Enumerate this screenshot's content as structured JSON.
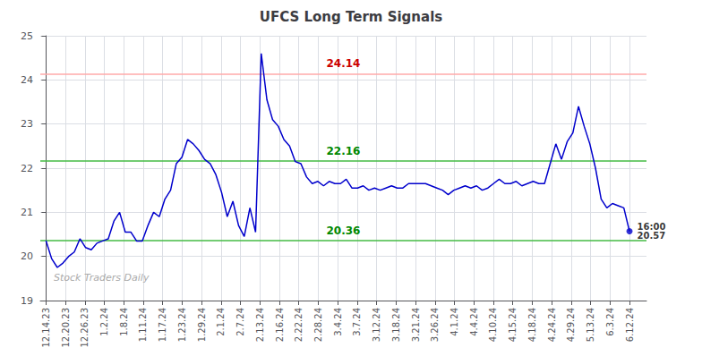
{
  "chart_data": {
    "type": "line",
    "title": "UFCS Long Term Signals",
    "color": "#0000cc",
    "x": [
      0,
      1,
      2,
      3,
      4,
      5,
      6,
      7,
      8,
      9,
      10,
      11,
      12,
      13,
      14,
      15,
      16,
      17,
      18,
      19,
      20,
      21,
      22,
      23,
      24,
      25,
      26,
      27,
      28,
      29,
      30,
      31,
      32,
      33,
      34,
      35,
      36,
      37,
      38,
      39,
      40,
      41,
      42,
      43,
      44,
      45,
      46,
      47,
      48,
      49,
      50,
      51,
      52,
      53,
      54,
      55,
      56,
      57,
      58,
      59,
      60,
      61,
      62,
      63,
      64,
      65,
      66,
      67,
      68,
      69,
      70,
      71,
      72,
      73,
      74,
      75,
      76,
      77,
      78,
      79,
      80,
      81,
      82,
      83,
      84,
      85,
      86,
      87,
      88,
      89,
      90,
      91,
      92,
      93,
      94,
      95,
      96,
      97,
      98,
      99,
      100,
      101,
      102,
      103
    ],
    "values": [
      20.36,
      19.95,
      19.75,
      19.85,
      20.0,
      20.1,
      20.4,
      20.2,
      20.15,
      20.3,
      20.35,
      20.4,
      20.8,
      21.0,
      20.55,
      20.55,
      20.35,
      20.35,
      20.7,
      21.0,
      20.9,
      21.3,
      21.5,
      22.1,
      22.25,
      22.65,
      22.55,
      22.4,
      22.2,
      22.1,
      21.85,
      21.45,
      20.9,
      21.25,
      20.7,
      20.45,
      21.1,
      20.55,
      24.6,
      23.55,
      23.1,
      22.95,
      22.65,
      22.5,
      22.15,
      22.1,
      21.8,
      21.65,
      21.7,
      21.6,
      21.7,
      21.65,
      21.65,
      21.75,
      21.55,
      21.55,
      21.6,
      21.5,
      21.55,
      21.5,
      21.55,
      21.6,
      21.55,
      21.55,
      21.65,
      21.65,
      21.65,
      21.65,
      21.6,
      21.55,
      21.5,
      21.4,
      21.5,
      21.55,
      21.6,
      21.55,
      21.6,
      21.5,
      21.55,
      21.65,
      21.75,
      21.65,
      21.65,
      21.7,
      21.6,
      21.65,
      21.7,
      21.65,
      21.65,
      22.1,
      22.55,
      22.2,
      22.6,
      22.8,
      23.4,
      22.95,
      22.55,
      22.0,
      21.3,
      21.1,
      21.2,
      21.15,
      21.1,
      20.57
    ],
    "xlim": [
      -1,
      106
    ],
    "xticks": [
      {
        "value": 0,
        "label": "12.14.23"
      },
      {
        "value": 3.433333,
        "label": "12.20.23"
      },
      {
        "value": 6.866667,
        "label": "12.26.23"
      },
      {
        "value": 10.3,
        "label": "1.2.24"
      },
      {
        "value": 13.733333,
        "label": "1.8.24"
      },
      {
        "value": 17.166667,
        "label": "1.11.24"
      },
      {
        "value": 20.6,
        "label": "1.17.24"
      },
      {
        "value": 24.033333,
        "label": "1.23.24"
      },
      {
        "value": 27.466667,
        "label": "1.29.24"
      },
      {
        "value": 30.9,
        "label": "2.1.24"
      },
      {
        "value": 34.333333,
        "label": "2.7.24"
      },
      {
        "value": 37.766667,
        "label": "2.13.24"
      },
      {
        "value": 41.2,
        "label": "2.16.24"
      },
      {
        "value": 44.633333,
        "label": "2.22.24"
      },
      {
        "value": 48.066667,
        "label": "2.28.24"
      },
      {
        "value": 51.5,
        "label": "3.4.24"
      },
      {
        "value": 54.933333,
        "label": "3.7.24"
      },
      {
        "value": 58.366667,
        "label": "3.12.24"
      },
      {
        "value": 61.8,
        "label": "3.18.24"
      },
      {
        "value": 65.233333,
        "label": "3.21.24"
      },
      {
        "value": 68.666667,
        "label": "3.26.24"
      },
      {
        "value": 72.1,
        "label": "4.1.24"
      },
      {
        "value": 75.533333,
        "label": "4.4.24"
      },
      {
        "value": 78.966667,
        "label": "4.10.24"
      },
      {
        "value": 82.4,
        "label": "4.15.24"
      },
      {
        "value": 85.833333,
        "label": "4.18.24"
      },
      {
        "value": 89.266667,
        "label": "4.24.24"
      },
      {
        "value": 92.7,
        "label": "4.29.24"
      },
      {
        "value": 96.133333,
        "label": "5.13.24"
      },
      {
        "value": 99.566667,
        "label": "6.3.24"
      },
      {
        "value": 103,
        "label": "6.12.24"
      }
    ],
    "ylim": [
      19,
      25
    ],
    "yticks": [
      19,
      20,
      21,
      22,
      23,
      24,
      25
    ],
    "grid": true,
    "reference_lines": [
      {
        "value": 24.14,
        "label": "24.14",
        "color": "#ffaaaa",
        "label_color": "#cc0000"
      },
      {
        "value": 22.16,
        "label": "22.16",
        "color": "#44bb44",
        "label_color": "#008800"
      },
      {
        "value": 20.36,
        "label": "20.36",
        "color": "#44bb44",
        "label_color": "#008800"
      }
    ],
    "annotations": [
      {
        "x": 103,
        "y": 20.57,
        "text": "16:00\n20.57",
        "color": "#000000",
        "marker": "circle"
      }
    ],
    "watermark": {
      "text": "Stock Traders Daily",
      "color": "#aaaaaa"
    }
  }
}
